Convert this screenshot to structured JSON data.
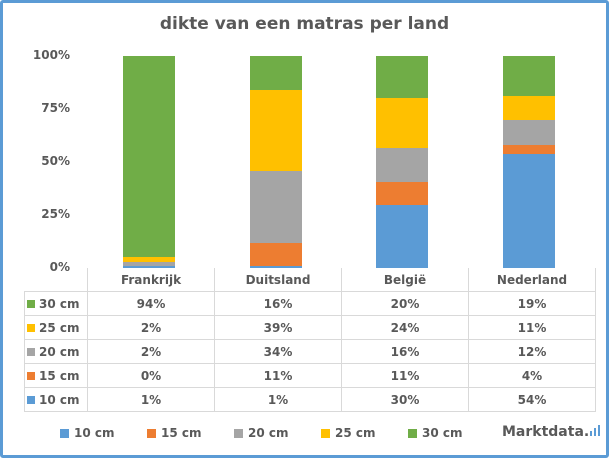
{
  "chart_data": {
    "type": "bar",
    "stacked": "percent",
    "title": "dikte van een matras per land",
    "categories": [
      "Frankrijk",
      "Duitsland",
      "België",
      "Nederland"
    ],
    "yticks": [
      "0%",
      "25%",
      "50%",
      "75%",
      "100%"
    ],
    "ylim": [
      0,
      100
    ],
    "series": [
      {
        "name": "10 cm",
        "color": "#5B9BD5",
        "values": [
          1,
          1,
          30,
          54
        ],
        "labels": [
          "1%",
          "1%",
          "30%",
          "54%"
        ]
      },
      {
        "name": "15 cm",
        "color": "#ED7D31",
        "values": [
          0,
          11,
          11,
          4
        ],
        "labels": [
          "0%",
          "11%",
          "11%",
          "4%"
        ]
      },
      {
        "name": "20 cm",
        "color": "#A5A5A5",
        "values": [
          2,
          34,
          16,
          12
        ],
        "labels": [
          "2%",
          "34%",
          "16%",
          "12%"
        ]
      },
      {
        "name": "25 cm",
        "color": "#FFC000",
        "values": [
          2,
          39,
          24,
          11
        ],
        "labels": [
          "2%",
          "39%",
          "24%",
          "11%"
        ]
      },
      {
        "name": "30 cm",
        "color": "#70AD47",
        "values": [
          94,
          16,
          20,
          19
        ],
        "labels": [
          "94%",
          "16%",
          "20%",
          "19%"
        ]
      }
    ],
    "legend": "bottom"
  },
  "logo": "Marktdata."
}
